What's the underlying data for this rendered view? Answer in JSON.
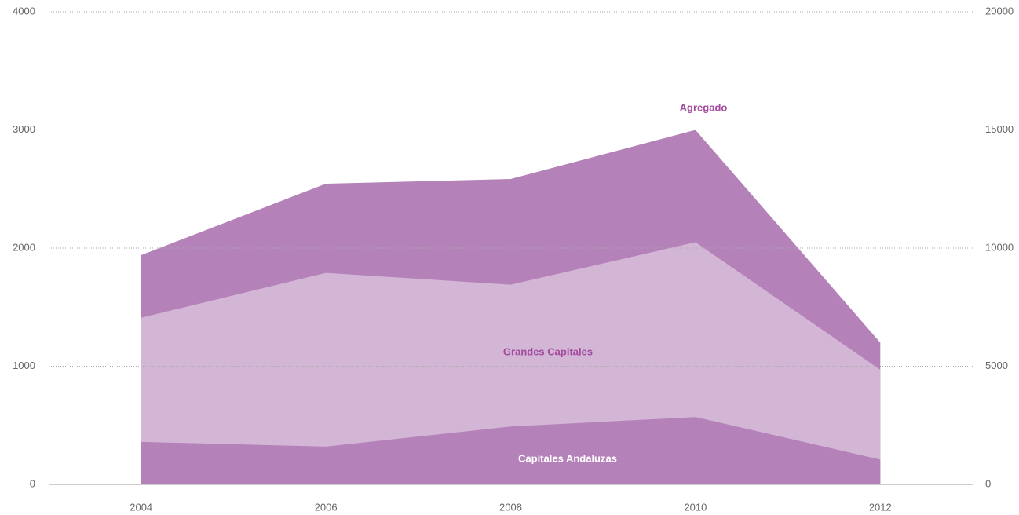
{
  "chart_data": {
    "type": "area",
    "x": [
      2004,
      2006,
      2008,
      2010,
      2012
    ],
    "xlim": [
      2003,
      2013
    ],
    "xticks": [
      2004,
      2006,
      2008,
      2010,
      2012
    ],
    "ylim": [
      0,
      4000
    ],
    "yticks": [
      0,
      1000,
      2000,
      3000,
      4000
    ],
    "y2lim": [
      0,
      20000
    ],
    "y2ticks": [
      0,
      5000,
      10000,
      15000,
      20000
    ],
    "grid": true,
    "series": [
      {
        "name": "Agregado",
        "color": "#b482b9",
        "values": [
          1940,
          2545,
          2585,
          3000,
          1200
        ]
      },
      {
        "name": "Grandes Capitales",
        "color": "#d3b5d6",
        "values": [
          1410,
          1790,
          1690,
          2050,
          970
        ]
      },
      {
        "name": "Capitales Andaluzas",
        "color": "#b482b9",
        "values": [
          360,
          320,
          490,
          570,
          210
        ]
      }
    ]
  }
}
